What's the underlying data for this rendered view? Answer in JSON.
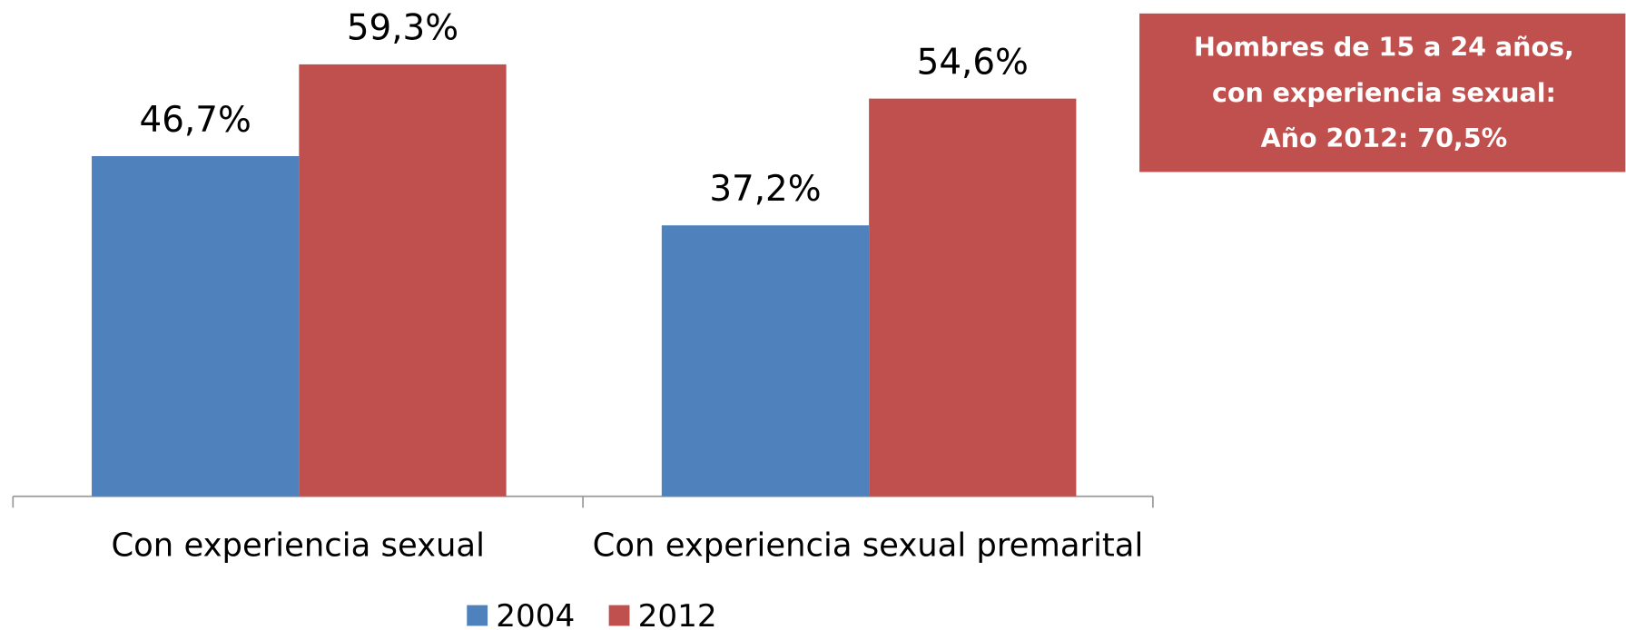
{
  "chart_data": {
    "type": "bar",
    "categories": [
      "Con experiencia sexual",
      "Con experiencia sexual premarital"
    ],
    "series": [
      {
        "name": "2004",
        "color": "#4f81bd",
        "values": [
          46.7,
          37.2
        ],
        "value_labels": [
          "46,7%",
          "37,2%"
        ]
      },
      {
        "name": "2012",
        "color": "#c0504d",
        "values": [
          59.3,
          54.6
        ],
        "value_labels": [
          "59,3%",
          "54,6%"
        ]
      }
    ],
    "annotation": {
      "lines": [
        "Hombres de 15 a 24 años,",
        "con experiencia sexual:",
        "Año 2012: 70,5%"
      ],
      "color": "#c0504d"
    },
    "legend": "bottom"
  }
}
